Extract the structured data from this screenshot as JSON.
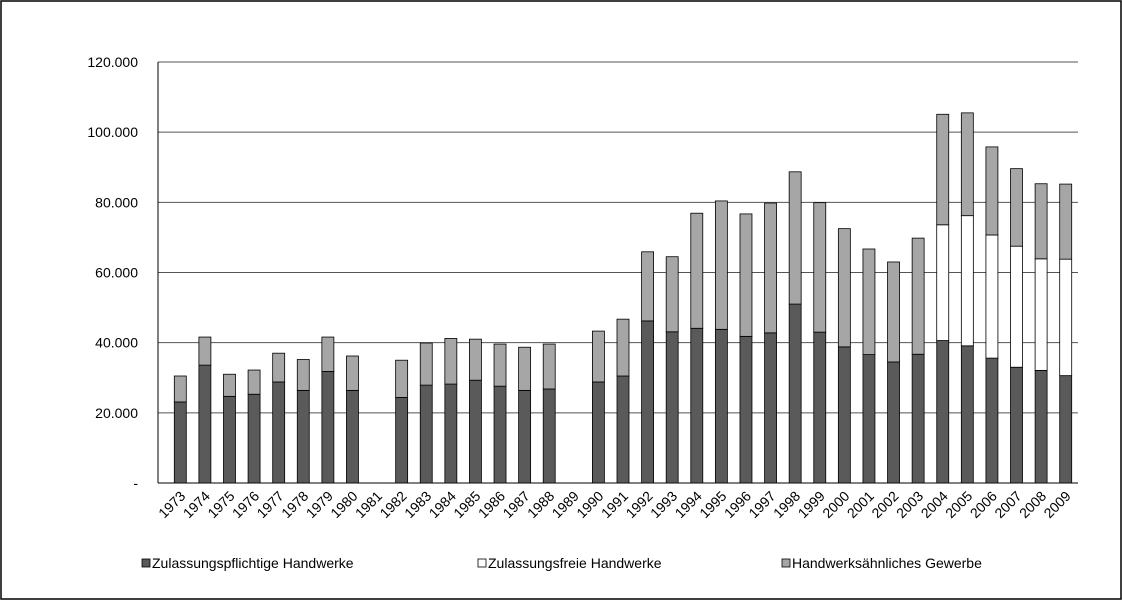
{
  "chart_data": {
    "type": "stacked_bar",
    "categories": [
      "1973",
      "1974",
      "1975",
      "1976",
      "1977",
      "1978",
      "1979",
      "1980",
      "1981",
      "1982",
      "1983",
      "1984",
      "1985",
      "1986",
      "1987",
      "1988",
      "1989",
      "1990",
      "1991",
      "1992",
      "1993",
      "1994",
      "1995",
      "1996",
      "1997",
      "1998",
      "1999",
      "2000",
      "2001",
      "2002",
      "2003",
      "2004",
      "2005",
      "2006",
      "2007",
      "2008",
      "2009"
    ],
    "series": [
      {
        "name": "Zulassungspflichtige Handwerke",
        "color": "#5a5a5a",
        "values": [
          23100,
          33600,
          24700,
          25300,
          28800,
          26400,
          31800,
          26400,
          null,
          24400,
          27900,
          28200,
          29300,
          27600,
          26400,
          26800,
          null,
          28800,
          30500,
          46200,
          43100,
          44100,
          43800,
          41800,
          42800,
          51000,
          43000,
          38800,
          36600,
          34500,
          36700,
          40600,
          39100,
          35600,
          33000,
          32100,
          30600
        ]
      },
      {
        "name": "Zulassungsfreie Handwerke",
        "color": "#ffffff",
        "values": [
          null,
          null,
          null,
          null,
          null,
          null,
          null,
          null,
          null,
          null,
          null,
          null,
          null,
          null,
          null,
          null,
          null,
          null,
          null,
          null,
          null,
          null,
          null,
          null,
          null,
          null,
          null,
          null,
          null,
          null,
          null,
          33000,
          37100,
          35100,
          34500,
          31800,
          33200
        ]
      },
      {
        "name": "Handwerksähnliches Gewerbe",
        "color": "#a6a6a6",
        "values": [
          7400,
          8000,
          6300,
          6900,
          8200,
          8800,
          9800,
          9800,
          null,
          10600,
          12000,
          13000,
          11700,
          12000,
          12300,
          12800,
          null,
          14500,
          16200,
          19700,
          21400,
          32800,
          36600,
          34900,
          37000,
          37700,
          36900,
          33700,
          30100,
          28500,
          33100,
          31500,
          29300,
          25100,
          22100,
          21400,
          21400
        ]
      }
    ],
    "ylim": [
      0,
      120000
    ],
    "yticks": [
      {
        "value": 0,
        "label": "-"
      },
      {
        "value": 20000,
        "label": "20.000"
      },
      {
        "value": 40000,
        "label": "40.000"
      },
      {
        "value": 60000,
        "label": "60.000"
      },
      {
        "value": 80000,
        "label": "80.000"
      },
      {
        "value": 100000,
        "label": "100.000"
      },
      {
        "value": 120000,
        "label": "120.000"
      }
    ],
    "grid": true,
    "legend": "bottom"
  }
}
